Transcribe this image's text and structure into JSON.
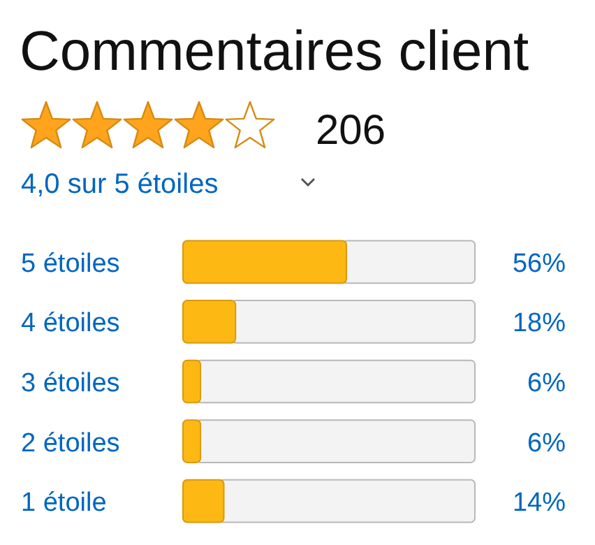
{
  "chart_data": {
    "type": "bar",
    "orientation": "horizontal",
    "title": "Commentaires client",
    "annotations": [
      "206",
      "4,0 sur 5 étoiles"
    ],
    "categories": [
      "5 étoiles",
      "4 étoiles",
      "3 étoiles",
      "2 étoiles",
      "1 étoile"
    ],
    "values": [
      56,
      18,
      6,
      6,
      14
    ],
    "value_labels": [
      "56%",
      "18%",
      "6%",
      "6%",
      "14%"
    ],
    "color": "#fdb813",
    "xlim": [
      0,
      100
    ],
    "tick_labels": "y"
  }
}
